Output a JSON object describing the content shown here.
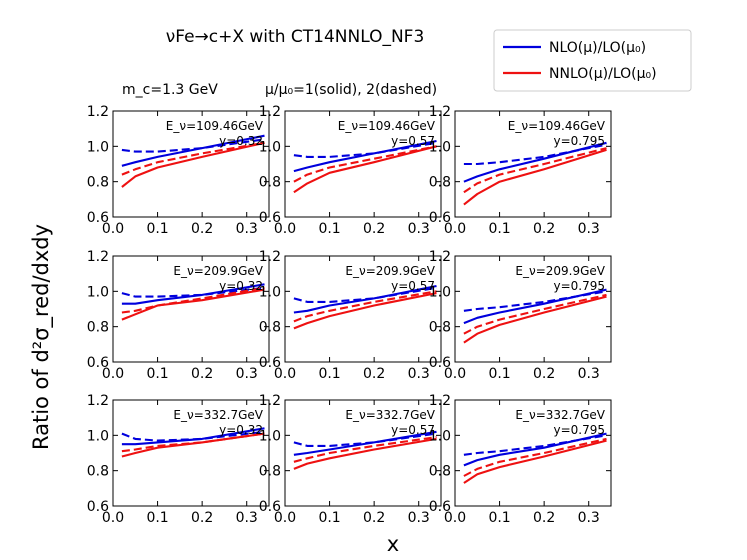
{
  "figure": {
    "title": "νFe→c+X with CT14NNLO_NF3",
    "mass_label": "m_c=1.3 GeV",
    "scale_label": "μ/μ₀=1(solid), 2(dashed)",
    "ylabel": "Ratio of d²σ_red/dxdy",
    "xlabel": "x",
    "legend": [
      {
        "label": "NLO(μ)/LO(μ₀)",
        "color": "#0000dd"
      },
      {
        "label": "NNLO(μ)/LO(μ₀)",
        "color": "#ee1111"
      }
    ]
  },
  "chart_data": [
    {
      "type": "line",
      "energy": "E_ν=109.46GeV",
      "y_label": "y=0.32",
      "xlim": [
        0,
        0.35
      ],
      "ylim": [
        0.6,
        1.2
      ],
      "x": [
        0.02,
        0.05,
        0.1,
        0.2,
        0.34
      ],
      "series": [
        {
          "style": "solid",
          "color": "#0000dd",
          "values": [
            0.89,
            0.91,
            0.94,
            0.99,
            1.06
          ]
        },
        {
          "style": "dashed",
          "color": "#0000dd",
          "values": [
            0.98,
            0.97,
            0.97,
            0.99,
            1.04
          ]
        },
        {
          "style": "dashed",
          "color": "#ee1111",
          "values": [
            0.84,
            0.87,
            0.91,
            0.96,
            1.02
          ]
        },
        {
          "style": "solid",
          "color": "#ee1111",
          "values": [
            0.77,
            0.83,
            0.88,
            0.94,
            1.02
          ]
        }
      ]
    },
    {
      "type": "line",
      "energy": "E_ν=109.46GeV",
      "y_label": "y=0.57",
      "xlim": [
        0,
        0.35
      ],
      "ylim": [
        0.6,
        1.2
      ],
      "x": [
        0.02,
        0.05,
        0.1,
        0.2,
        0.34
      ],
      "series": [
        {
          "style": "solid",
          "color": "#0000dd",
          "values": [
            0.86,
            0.88,
            0.91,
            0.96,
            1.03
          ]
        },
        {
          "style": "dashed",
          "color": "#0000dd",
          "values": [
            0.95,
            0.94,
            0.94,
            0.96,
            1.02
          ]
        },
        {
          "style": "dashed",
          "color": "#ee1111",
          "values": [
            0.8,
            0.84,
            0.88,
            0.93,
            1.0
          ]
        },
        {
          "style": "solid",
          "color": "#ee1111",
          "values": [
            0.74,
            0.79,
            0.85,
            0.91,
            1.0
          ]
        }
      ]
    },
    {
      "type": "line",
      "energy": "E_ν=109.46GeV",
      "y_label": "y=0.795",
      "xlim": [
        0,
        0.35
      ],
      "ylim": [
        0.6,
        1.2
      ],
      "x": [
        0.02,
        0.05,
        0.1,
        0.2,
        0.34
      ],
      "series": [
        {
          "style": "solid",
          "color": "#0000dd",
          "values": [
            0.8,
            0.83,
            0.87,
            0.93,
            1.02
          ]
        },
        {
          "style": "dashed",
          "color": "#0000dd",
          "values": [
            0.9,
            0.9,
            0.91,
            0.94,
            1.01
          ]
        },
        {
          "style": "dashed",
          "color": "#ee1111",
          "values": [
            0.74,
            0.79,
            0.84,
            0.9,
            0.99
          ]
        },
        {
          "style": "solid",
          "color": "#ee1111",
          "values": [
            0.67,
            0.73,
            0.8,
            0.87,
            0.98
          ]
        }
      ]
    },
    {
      "type": "line",
      "energy": "E_ν=209.9GeV",
      "y_label": "y=0.32",
      "xlim": [
        0,
        0.35
      ],
      "ylim": [
        0.6,
        1.2
      ],
      "x": [
        0.02,
        0.05,
        0.1,
        0.2,
        0.34
      ],
      "series": [
        {
          "style": "solid",
          "color": "#0000dd",
          "values": [
            0.93,
            0.93,
            0.95,
            0.98,
            1.04
          ]
        },
        {
          "style": "dashed",
          "color": "#0000dd",
          "values": [
            0.99,
            0.97,
            0.97,
            0.98,
            1.02
          ]
        },
        {
          "style": "dashed",
          "color": "#ee1111",
          "values": [
            0.88,
            0.89,
            0.92,
            0.96,
            1.02
          ]
        },
        {
          "style": "solid",
          "color": "#ee1111",
          "values": [
            0.84,
            0.87,
            0.92,
            0.95,
            1.01
          ]
        }
      ]
    },
    {
      "type": "line",
      "energy": "E_ν=209.9GeV",
      "y_label": "y=0.57",
      "xlim": [
        0,
        0.35
      ],
      "ylim": [
        0.6,
        1.2
      ],
      "x": [
        0.02,
        0.05,
        0.1,
        0.2,
        0.34
      ],
      "series": [
        {
          "style": "solid",
          "color": "#0000dd",
          "values": [
            0.88,
            0.89,
            0.92,
            0.96,
            1.03
          ]
        },
        {
          "style": "dashed",
          "color": "#0000dd",
          "values": [
            0.96,
            0.94,
            0.94,
            0.96,
            1.02
          ]
        },
        {
          "style": "dashed",
          "color": "#ee1111",
          "values": [
            0.83,
            0.86,
            0.89,
            0.94,
            1.0
          ]
        },
        {
          "style": "solid",
          "color": "#ee1111",
          "values": [
            0.79,
            0.82,
            0.86,
            0.92,
            0.99
          ]
        }
      ]
    },
    {
      "type": "line",
      "energy": "E_ν=209.9GeV",
      "y_label": "y=0.795",
      "xlim": [
        0,
        0.35
      ],
      "ylim": [
        0.6,
        1.2
      ],
      "x": [
        0.02,
        0.05,
        0.1,
        0.2,
        0.34
      ],
      "series": [
        {
          "style": "solid",
          "color": "#0000dd",
          "values": [
            0.82,
            0.85,
            0.88,
            0.93,
            1.01
          ]
        },
        {
          "style": "dashed",
          "color": "#0000dd",
          "values": [
            0.89,
            0.9,
            0.91,
            0.94,
            1.0
          ]
        },
        {
          "style": "dashed",
          "color": "#ee1111",
          "values": [
            0.76,
            0.8,
            0.84,
            0.9,
            0.98
          ]
        },
        {
          "style": "solid",
          "color": "#ee1111",
          "values": [
            0.71,
            0.76,
            0.81,
            0.88,
            0.97
          ]
        }
      ]
    },
    {
      "type": "line",
      "energy": "E_ν=332.7GeV",
      "y_label": "y=0.32",
      "xlim": [
        0,
        0.35
      ],
      "ylim": [
        0.6,
        1.2
      ],
      "x": [
        0.02,
        0.05,
        0.1,
        0.2,
        0.34
      ],
      "series": [
        {
          "style": "solid",
          "color": "#0000dd",
          "values": [
            0.95,
            0.95,
            0.96,
            0.98,
            1.04
          ]
        },
        {
          "style": "dashed",
          "color": "#0000dd",
          "values": [
            1.01,
            0.98,
            0.97,
            0.98,
            1.02
          ]
        },
        {
          "style": "dashed",
          "color": "#ee1111",
          "values": [
            0.91,
            0.92,
            0.94,
            0.96,
            1.01
          ]
        },
        {
          "style": "solid",
          "color": "#ee1111",
          "values": [
            0.88,
            0.9,
            0.93,
            0.96,
            1.01
          ]
        }
      ]
    },
    {
      "type": "line",
      "energy": "E_ν=332.7GeV",
      "y_label": "y=0.57",
      "xlim": [
        0,
        0.35
      ],
      "ylim": [
        0.6,
        1.2
      ],
      "x": [
        0.02,
        0.05,
        0.1,
        0.2,
        0.34
      ],
      "series": [
        {
          "style": "solid",
          "color": "#0000dd",
          "values": [
            0.89,
            0.9,
            0.92,
            0.96,
            1.02
          ]
        },
        {
          "style": "dashed",
          "color": "#0000dd",
          "values": [
            0.96,
            0.94,
            0.94,
            0.96,
            1.01
          ]
        },
        {
          "style": "dashed",
          "color": "#ee1111",
          "values": [
            0.85,
            0.87,
            0.9,
            0.94,
            0.99
          ]
        },
        {
          "style": "solid",
          "color": "#ee1111",
          "values": [
            0.81,
            0.84,
            0.87,
            0.92,
            0.98
          ]
        }
      ]
    },
    {
      "type": "line",
      "energy": "E_ν=332.7GeV",
      "y_label": "y=0.795",
      "xlim": [
        0,
        0.35
      ],
      "ylim": [
        0.6,
        1.2
      ],
      "x": [
        0.02,
        0.05,
        0.1,
        0.2,
        0.34
      ],
      "series": [
        {
          "style": "solid",
          "color": "#0000dd",
          "values": [
            0.83,
            0.86,
            0.89,
            0.93,
            1.01
          ]
        },
        {
          "style": "dashed",
          "color": "#0000dd",
          "values": [
            0.89,
            0.9,
            0.91,
            0.94,
            1.0
          ]
        },
        {
          "style": "dashed",
          "color": "#ee1111",
          "values": [
            0.77,
            0.81,
            0.85,
            0.9,
            0.98
          ]
        },
        {
          "style": "solid",
          "color": "#ee1111",
          "values": [
            0.73,
            0.78,
            0.82,
            0.88,
            0.97
          ]
        }
      ]
    }
  ]
}
